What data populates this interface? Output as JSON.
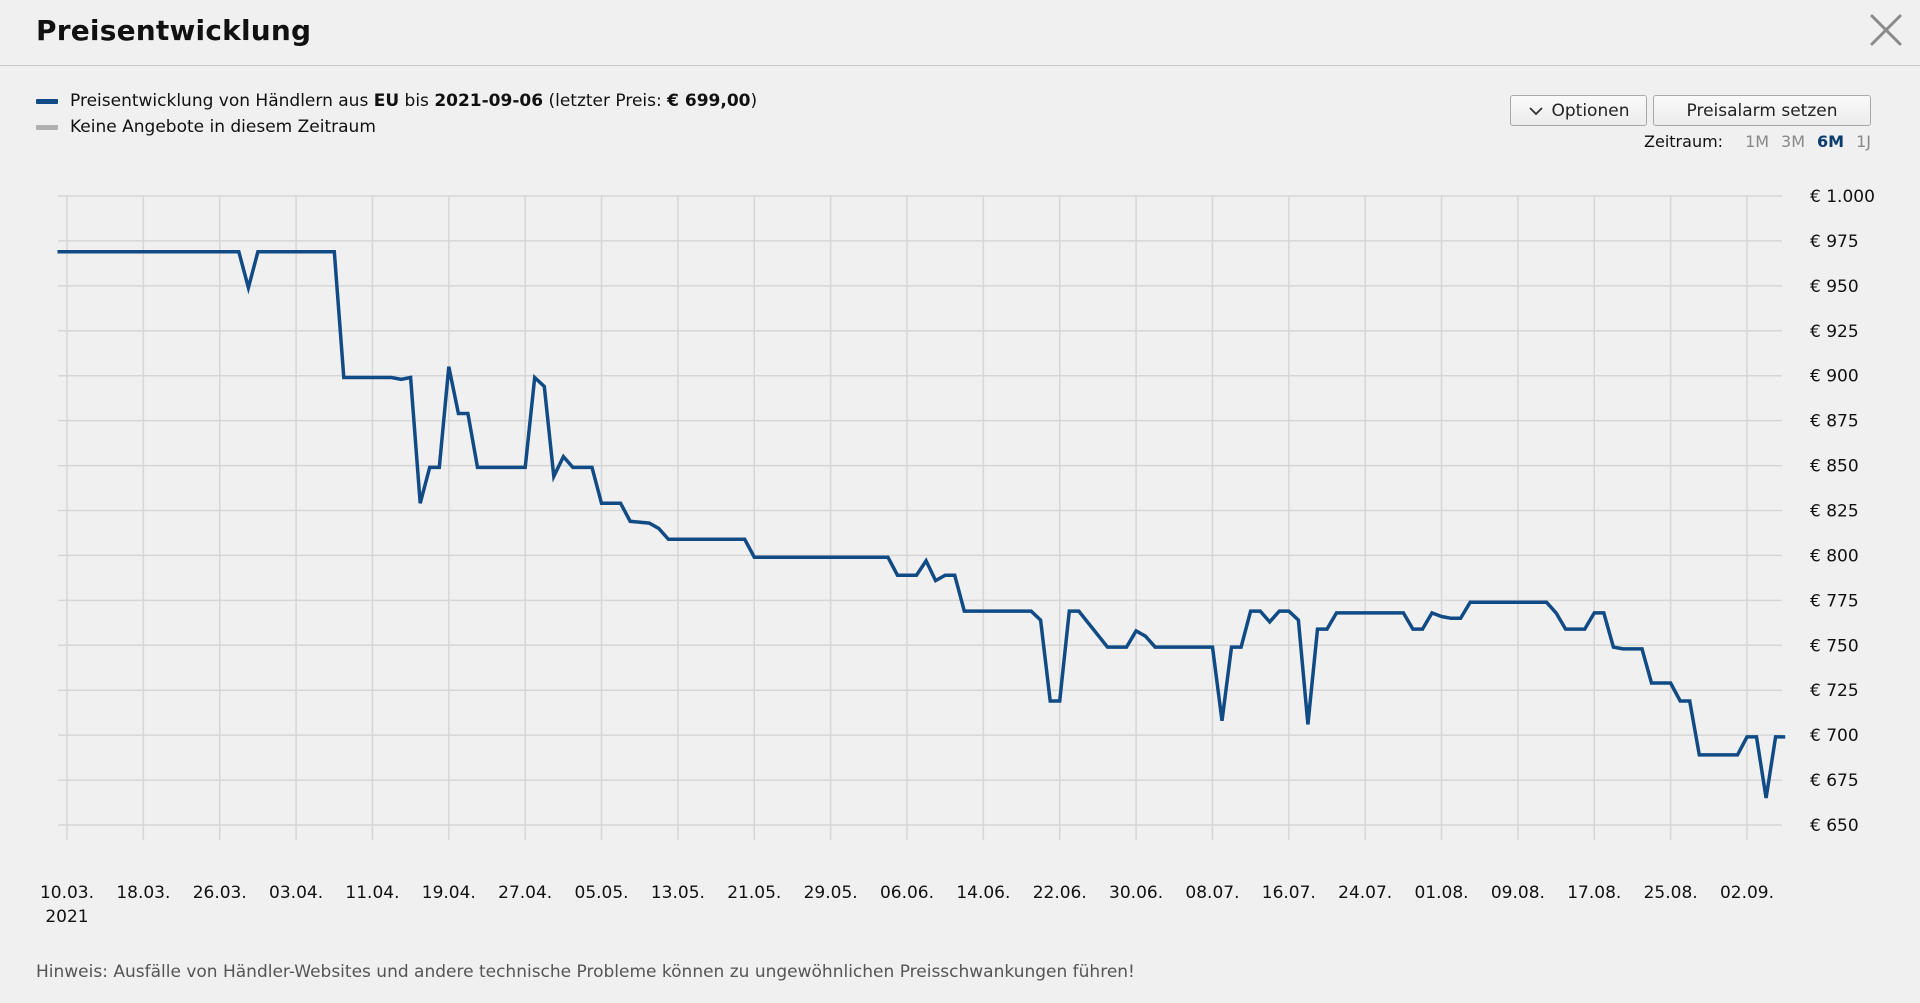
{
  "header": {
    "title": "Preisentwicklung"
  },
  "legend": {
    "price_prefix": "Preisentwicklung von Händlern aus ",
    "region": "EU",
    "until_text": " bis ",
    "date": "2021-09-06",
    "last_price_prefix": " (letzter Preis: ",
    "last_price": "€ 699,00",
    "last_price_suffix": ")",
    "no_offers": "Keine Angebote in diesem Zeitraum"
  },
  "toolbar": {
    "options_label": "Optionen",
    "alarm_label": "Preisalarm setzen"
  },
  "range": {
    "label": "Zeitraum:",
    "options": [
      "1M",
      "3M",
      "6M",
      "1J"
    ],
    "active": "6M"
  },
  "note": "Hinweis: Ausfälle von Händler-Websites und andere technische Probleme können zu ungewöhnlichen Preisschwankungen führen!",
  "colors": {
    "series": "#114b86",
    "no_offers": "#b0b0b0",
    "grid": "#d6d6d6"
  },
  "chart_data": {
    "type": "line",
    "title": "",
    "xlabel": "",
    "ylabel": "",
    "x_ticks": [
      "10.03.",
      "18.03.",
      "26.03.",
      "03.04.",
      "11.04.",
      "19.04.",
      "27.04.",
      "05.05.",
      "13.05.",
      "21.05.",
      "29.05.",
      "06.06.",
      "14.06.",
      "22.06.",
      "30.06.",
      "08.07.",
      "16.07.",
      "24.07.",
      "01.08.",
      "09.08.",
      "17.08.",
      "25.08.",
      "02.09."
    ],
    "x_ticks_sub": {
      "10.03.": "2021"
    },
    "xlim": [
      "2021-03-09",
      "2021-09-06"
    ],
    "ylim": [
      625,
      1000
    ],
    "y_ticks": [
      650,
      675,
      700,
      725,
      750,
      775,
      800,
      825,
      850,
      875,
      900,
      925,
      950,
      975,
      1000
    ],
    "y_tick_labels": [
      "€ 650",
      "€ 675",
      "€ 700",
      "€ 725",
      "€ 750",
      "€ 775",
      "€ 800",
      "€ 825",
      "€ 850",
      "€ 875",
      "€ 900",
      "€ 925",
      "€ 950",
      "€ 975",
      "€ 1.000"
    ],
    "grid": true,
    "legend_position": "top-left",
    "series": [
      {
        "name": "Preisentwicklung von Händlern aus EU",
        "points": [
          [
            "2021-03-09",
            969
          ],
          [
            "2021-03-28",
            969
          ],
          [
            "2021-03-29",
            949
          ],
          [
            "2021-03-30",
            969
          ],
          [
            "2021-04-07",
            969
          ],
          [
            "2021-04-08",
            899
          ],
          [
            "2021-04-13",
            899
          ],
          [
            "2021-04-14",
            898
          ],
          [
            "2021-04-15",
            899
          ],
          [
            "2021-04-16",
            829
          ],
          [
            "2021-04-17",
            849
          ],
          [
            "2021-04-18",
            849
          ],
          [
            "2021-04-19",
            905
          ],
          [
            "2021-04-20",
            879
          ],
          [
            "2021-04-21",
            879
          ],
          [
            "2021-04-22",
            849
          ],
          [
            "2021-04-27",
            849
          ],
          [
            "2021-04-28",
            899
          ],
          [
            "2021-04-29",
            894
          ],
          [
            "2021-04-30",
            844
          ],
          [
            "2021-05-01",
            855
          ],
          [
            "2021-05-02",
            849
          ],
          [
            "2021-05-04",
            849
          ],
          [
            "2021-05-05",
            829
          ],
          [
            "2021-05-07",
            829
          ],
          [
            "2021-05-08",
            819
          ],
          [
            "2021-05-10",
            818
          ],
          [
            "2021-05-11",
            815
          ],
          [
            "2021-05-12",
            809
          ],
          [
            "2021-05-20",
            809
          ],
          [
            "2021-05-21",
            799
          ],
          [
            "2021-06-04",
            799
          ],
          [
            "2021-06-05",
            789
          ],
          [
            "2021-06-07",
            789
          ],
          [
            "2021-06-08",
            797
          ],
          [
            "2021-06-09",
            786
          ],
          [
            "2021-06-10",
            789
          ],
          [
            "2021-06-11",
            789
          ],
          [
            "2021-06-12",
            769
          ],
          [
            "2021-06-19",
            769
          ],
          [
            "2021-06-20",
            764
          ],
          [
            "2021-06-21",
            719
          ],
          [
            "2021-06-22",
            719
          ],
          [
            "2021-06-23",
            769
          ],
          [
            "2021-06-24",
            769
          ],
          [
            "2021-06-27",
            749
          ],
          [
            "2021-06-29",
            749
          ],
          [
            "2021-06-30",
            758
          ],
          [
            "2021-07-01",
            755
          ],
          [
            "2021-07-02",
            749
          ],
          [
            "2021-07-08",
            749
          ],
          [
            "2021-07-09",
            708
          ],
          [
            "2021-07-10",
            749
          ],
          [
            "2021-07-11",
            749
          ],
          [
            "2021-07-12",
            769
          ],
          [
            "2021-07-13",
            769
          ],
          [
            "2021-07-14",
            763
          ],
          [
            "2021-07-15",
            769
          ],
          [
            "2021-07-16",
            769
          ],
          [
            "2021-07-17",
            764
          ],
          [
            "2021-07-18",
            706
          ],
          [
            "2021-07-19",
            759
          ],
          [
            "2021-07-20",
            759
          ],
          [
            "2021-07-21",
            768
          ],
          [
            "2021-07-28",
            768
          ],
          [
            "2021-07-29",
            759
          ],
          [
            "2021-07-30",
            759
          ],
          [
            "2021-07-31",
            768
          ],
          [
            "2021-08-01",
            766
          ],
          [
            "2021-08-02",
            765
          ],
          [
            "2021-08-03",
            765
          ],
          [
            "2021-08-04",
            774
          ],
          [
            "2021-08-12",
            774
          ],
          [
            "2021-08-13",
            768
          ],
          [
            "2021-08-14",
            759
          ],
          [
            "2021-08-16",
            759
          ],
          [
            "2021-08-17",
            768
          ],
          [
            "2021-08-18",
            768
          ],
          [
            "2021-08-19",
            749
          ],
          [
            "2021-08-20",
            748
          ],
          [
            "2021-08-22",
            748
          ],
          [
            "2021-08-23",
            729
          ],
          [
            "2021-08-25",
            729
          ],
          [
            "2021-08-26",
            719
          ],
          [
            "2021-08-27",
            719
          ],
          [
            "2021-08-28",
            689
          ],
          [
            "2021-09-01",
            689
          ],
          [
            "2021-09-02",
            699
          ],
          [
            "2021-09-03",
            699
          ],
          [
            "2021-09-04",
            665
          ],
          [
            "2021-09-05",
            699
          ],
          [
            "2021-09-06",
            699
          ]
        ]
      }
    ]
  }
}
